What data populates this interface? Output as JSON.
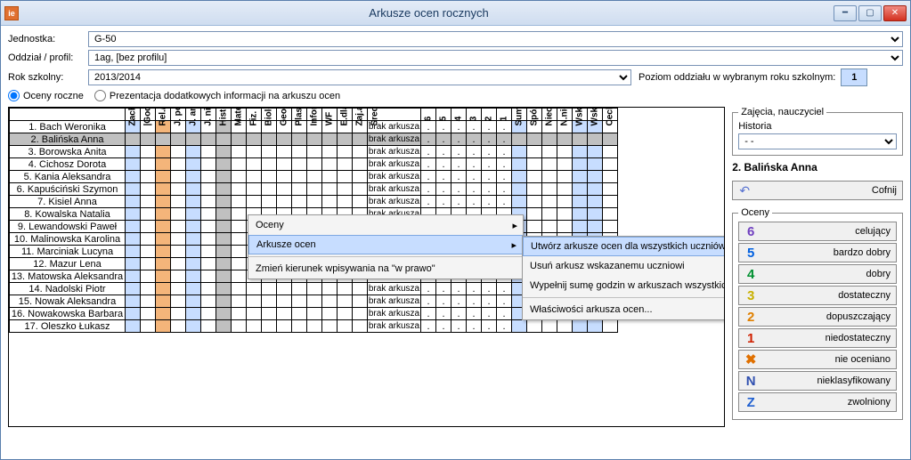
{
  "window": {
    "title": "Arkusze ocen rocznych"
  },
  "form": {
    "jednostka_label": "Jednostka:",
    "jednostka_value": "G-50",
    "oddzial_label": "Oddział / profil:",
    "oddzial_value": "1ag, [bez profilu]",
    "rok_label": "Rok szkolny:",
    "rok_value": "2013/2014",
    "level_label": "Poziom oddziału w wybranym roku szkolnym:",
    "level_value": "1"
  },
  "radios": {
    "r1": "Oceny roczne",
    "r2": "Prezentacja dodatkowych informacji na arkuszu ocen"
  },
  "headers": {
    "rot": [
      "Zachowanie",
      "|Godz.wych.|",
      "Rel./etyka",
      "J. polski",
      "J. angielski",
      "J. niemiecki",
      "Historia",
      "Matematyka",
      "Fiz. z astr.",
      "Biologia",
      "Geografia",
      "Plastyka",
      "Informatyka",
      "WF",
      "E.dla bezp",
      "Zaj.artysty"
    ],
    "avg": "Średnia",
    "nums": [
      "6",
      "5",
      "4",
      "3",
      "2",
      "1"
    ],
    "rot2": [
      "Suma godzin",
      "Spóźnień",
      "Nieobecn.",
      "N.nieuspr.",
      "Wsk.prom.aut.",
      "Wsk.prom.man.",
      "Cechy nauki"
    ]
  },
  "students": [
    "1. Bach Weronika",
    "2. Balińska Anna",
    "3. Borowska Anita",
    "4. Cichosz Dorota",
    "5. Kania Aleksandra",
    "6. Kapuściński Szymon",
    "7. Kisiel Anna",
    "8. Kowalska Natalia",
    "9. Lewandowski Paweł",
    "10. Malinowska Karolina",
    "11. Marciniak Lucyna",
    "12. Mazur Lena",
    "13. Matowska Aleksandra",
    "14. Nadolski Piotr",
    "15. Nowak Aleksandra",
    "16. Nowakowska Barbara",
    "17. Oleszko Łukasz"
  ],
  "avg_text": "brak arkusza",
  "ctx1": {
    "i1": "Oceny",
    "i2": "Arkusze ocen",
    "i3": "Zmień kierunek wpisywania na \"w prawo\""
  },
  "ctx2": {
    "i1": "Utwórz arkusze ocen dla wszystkich uczniów",
    "i2": "Usuń arkusz wskazanemu uczniowi",
    "i3": "Wypełnij sumę godzin w arkuszach wszystkich uczniów",
    "i4": "Właściwości arkusza ocen..."
  },
  "side": {
    "fs_label": "Zajęcia, nauczyciel",
    "subject": "Historia",
    "dd": "- -",
    "student": "2. Balińska Anna",
    "undo": "Cofnij",
    "oceny_label": "Oceny"
  },
  "grades": [
    {
      "sym": "6",
      "color": "#7040c0",
      "txt": "celujący"
    },
    {
      "sym": "5",
      "color": "#0060e0",
      "txt": "bardzo dobry"
    },
    {
      "sym": "4",
      "color": "#009030",
      "txt": "dobry"
    },
    {
      "sym": "3",
      "color": "#c8b000",
      "txt": "dostateczny"
    },
    {
      "sym": "2",
      "color": "#e08000",
      "txt": "dopuszczający"
    },
    {
      "sym": "1",
      "color": "#d02000",
      "txt": "niedostateczny"
    },
    {
      "sym": "✖",
      "color": "#e07000",
      "txt": "nie oceniano"
    },
    {
      "sym": "N",
      "color": "#3050b0",
      "txt": "nieklasyfikowany"
    },
    {
      "sym": "Z",
      "color": "#2060d0",
      "txt": "zwolniony"
    }
  ]
}
